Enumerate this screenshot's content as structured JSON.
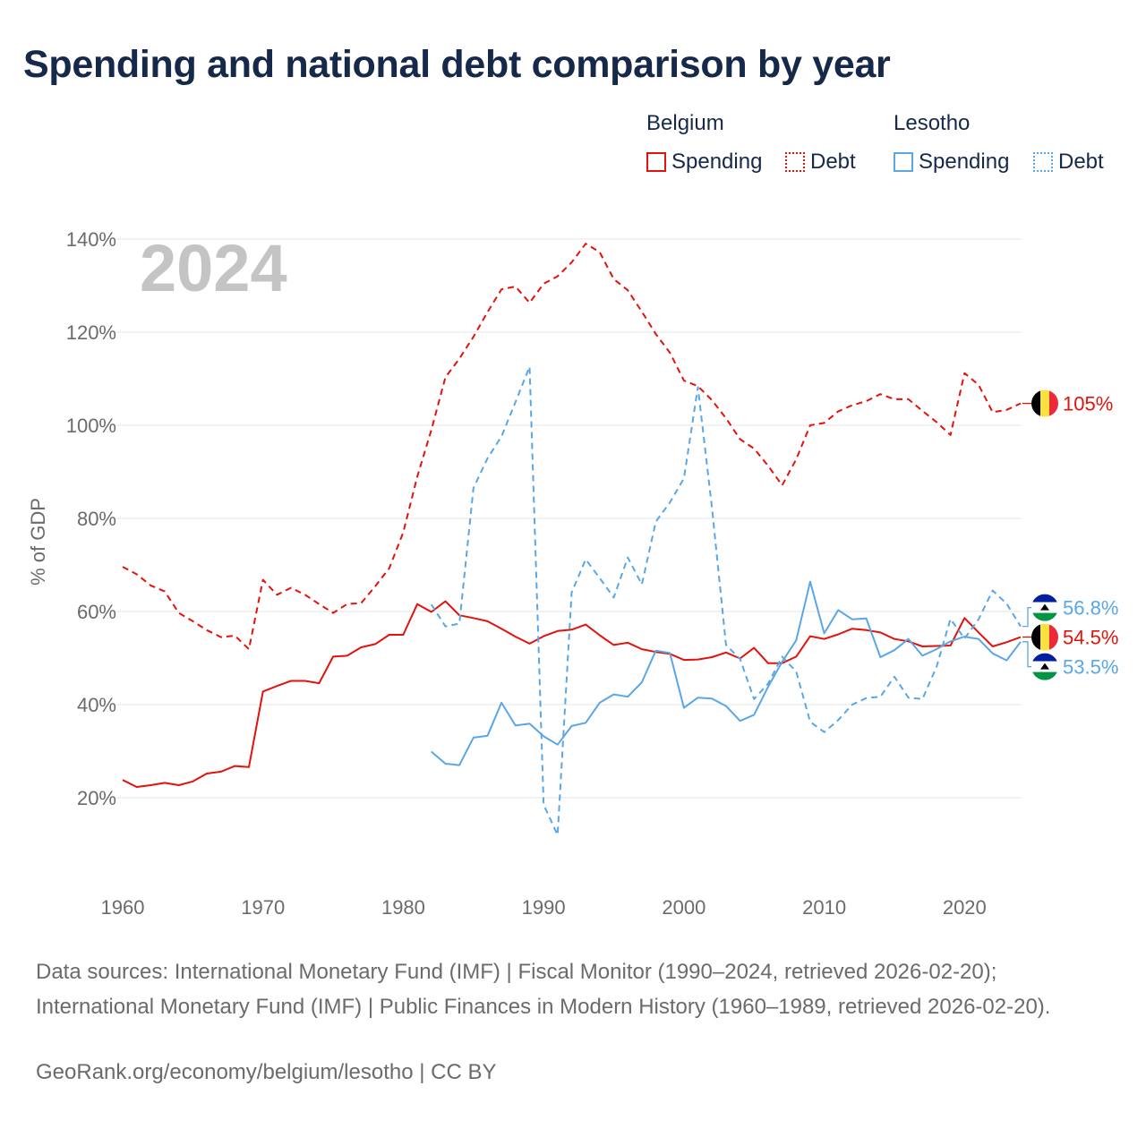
{
  "title": "Spending and national debt comparison by year",
  "legend": {
    "countries": [
      {
        "name": "Belgium",
        "color": "#e3120b",
        "items": [
          {
            "label": "Spending",
            "style": "solid"
          },
          {
            "label": "Debt",
            "style": "dotted"
          }
        ]
      },
      {
        "name": "Lesotho",
        "color": "#5aa6e6",
        "items": [
          {
            "label": "Spending",
            "style": "solid"
          },
          {
            "label": "Debt",
            "style": "dotted"
          }
        ]
      }
    ]
  },
  "source_text": "Data sources: International Monetary Fund (IMF) | Fiscal Monitor (1990–2024, retrieved 2026-02-20); International Monetary Fund (IMF) | Public Finances in Modern History (1960–1989, retrieved 2026-02-20).",
  "credit": "GeoRank.org/economy/belgium/lesotho | CC BY",
  "chart_data": {
    "type": "line",
    "title": "Spending and national debt comparison by year",
    "year_label": "2024",
    "ylabel": "% of GDP",
    "xlabel": "",
    "xlim": [
      1960,
      2024
    ],
    "ylim": [
      5,
      145
    ],
    "yticks": [
      20,
      40,
      60,
      80,
      100,
      120,
      140
    ],
    "ytick_labels": [
      "20%",
      "40%",
      "60%",
      "80%",
      "100%",
      "120%",
      "140%"
    ],
    "xticks": [
      1960,
      1970,
      1980,
      1990,
      2000,
      2010,
      2020
    ],
    "xtick_labels": [
      "1960",
      "1970",
      "1980",
      "1990",
      "2000",
      "2010",
      "2020"
    ],
    "grid": true,
    "series": [
      {
        "name": "Belgium Spending",
        "country": "Belgium",
        "color": "#e3120b",
        "dash": "solid",
        "x": [
          1960,
          1961,
          1962,
          1963,
          1964,
          1965,
          1966,
          1967,
          1968,
          1969,
          1970,
          1971,
          1972,
          1973,
          1974,
          1975,
          1976,
          1977,
          1978,
          1979,
          1980,
          1981,
          1982,
          1983,
          1984,
          1985,
          1986,
          1987,
          1988,
          1989,
          1990,
          1991,
          1992,
          1993,
          1994,
          1995,
          1996,
          1997,
          1998,
          1999,
          2000,
          2001,
          2002,
          2003,
          2004,
          2005,
          2006,
          2007,
          2008,
          2009,
          2010,
          2011,
          2012,
          2013,
          2014,
          2015,
          2016,
          2017,
          2018,
          2019,
          2020,
          2021,
          2022,
          2023,
          2024
        ],
        "y": [
          23.8,
          22.3,
          22.7,
          23.2,
          22.7,
          23.5,
          25.2,
          25.6,
          26.8,
          26.6,
          42.8,
          44,
          45.1,
          45.1,
          44.6,
          50.3,
          50.5,
          52.3,
          53,
          55,
          55,
          61.6,
          59.9,
          62.2,
          59.2,
          58.6,
          57.9,
          56.3,
          54.6,
          53.1,
          54.7,
          55.8,
          56.1,
          57.2,
          54.9,
          52.8,
          53.3,
          51.9,
          51.3,
          50.9,
          49.6,
          49.7,
          50.2,
          51.2,
          49.9,
          52.2,
          48.9,
          48.9,
          50.3,
          54.7,
          54.1,
          55.1,
          56.3,
          56,
          55.5,
          54.1,
          53.6,
          52.5,
          52.6,
          52.7,
          58.6,
          55.5,
          52.5,
          53.4,
          54.5
        ],
        "end_label": "54.5%"
      },
      {
        "name": "Belgium Debt",
        "country": "Belgium",
        "color": "#e3120b",
        "dash": "dashed",
        "x": [
          1960,
          1961,
          1962,
          1963,
          1964,
          1965,
          1966,
          1967,
          1968,
          1969,
          1970,
          1971,
          1972,
          1973,
          1974,
          1975,
          1976,
          1977,
          1978,
          1979,
          1980,
          1981,
          1982,
          1983,
          1984,
          1985,
          1986,
          1987,
          1988,
          1989,
          1990,
          1991,
          1992,
          1993,
          1994,
          1995,
          1996,
          1997,
          1998,
          1999,
          2000,
          2001,
          2002,
          2003,
          2004,
          2005,
          2006,
          2007,
          2008,
          2009,
          2010,
          2011,
          2012,
          2013,
          2014,
          2015,
          2016,
          2017,
          2018,
          2019,
          2020,
          2021,
          2022,
          2023,
          2024
        ],
        "y": [
          69.6,
          68,
          65.6,
          64.3,
          59.7,
          57.9,
          56,
          54.5,
          54.8,
          51.9,
          66.8,
          63.6,
          65.1,
          63.6,
          61.6,
          59.7,
          61.6,
          61.8,
          65.4,
          69.3,
          77,
          89,
          99,
          110.3,
          114.3,
          119,
          124.3,
          129.2,
          129.8,
          126.3,
          130.4,
          132,
          135,
          139,
          137.2,
          131.4,
          129,
          124.4,
          119.6,
          115.6,
          109.6,
          108.4,
          105.4,
          101.5,
          97,
          95,
          91.3,
          87.1,
          92.7,
          100,
          100.5,
          103,
          104.3,
          105.2,
          106.7,
          105.6,
          105.6,
          103.1,
          100.7,
          97.9,
          111.2,
          108.7,
          102.8,
          103.3,
          104.7
        ],
        "end_label": "105%"
      },
      {
        "name": "Lesotho Spending",
        "country": "Lesotho",
        "color": "#5aa6e6",
        "dash": "solid",
        "x": [
          1982,
          1983,
          1984,
          1985,
          1986,
          1987,
          1988,
          1989,
          1990,
          1991,
          1992,
          1993,
          1994,
          1995,
          1996,
          1997,
          1998,
          1999,
          2000,
          2001,
          2002,
          2003,
          2004,
          2005,
          2006,
          2007,
          2008,
          2009,
          2010,
          2011,
          2012,
          2013,
          2014,
          2015,
          2016,
          2017,
          2018,
          2019,
          2020,
          2021,
          2022,
          2023,
          2024
        ],
        "y": [
          29.9,
          27.3,
          27,
          32.9,
          33.3,
          40.4,
          35.5,
          35.9,
          33.2,
          31.4,
          35.4,
          36.1,
          40.4,
          42.2,
          41.7,
          44.8,
          51.6,
          51.1,
          39.3,
          41.5,
          41.3,
          39.7,
          36.5,
          37.8,
          43.8,
          49.2,
          53.8,
          66.4,
          55.3,
          60.3,
          58.3,
          58.5,
          50.2,
          51.7,
          54.1,
          50.5,
          51.9,
          53.6,
          54.6,
          54.1,
          51,
          49.5,
          53.5
        ],
        "end_label": "53.5%"
      },
      {
        "name": "Lesotho Debt",
        "country": "Lesotho",
        "color": "#5aa6e6",
        "dash": "dashed",
        "x": [
          1982,
          1983,
          1984,
          1985,
          1986,
          1987,
          1988,
          1989,
          1990,
          1991,
          1992,
          1993,
          1994,
          1995,
          1996,
          1997,
          1998,
          1999,
          2000,
          2001,
          2002,
          2003,
          2004,
          2005,
          2006,
          2007,
          2008,
          2009,
          2010,
          2011,
          2012,
          2013,
          2014,
          2015,
          2016,
          2017,
          2018,
          2019,
          2020,
          2021,
          2022,
          2023,
          2024
        ],
        "y": [
          61.5,
          56.8,
          57.4,
          86.5,
          92.9,
          97.6,
          105,
          112.6,
          18.5,
          12,
          64.1,
          71.2,
          67.2,
          63,
          71.6,
          65.8,
          79.3,
          83.4,
          88.6,
          108.2,
          82.3,
          52.8,
          49.8,
          41.2,
          44.5,
          50.3,
          47.1,
          36.3,
          34.1,
          36.7,
          40,
          41.4,
          41.7,
          46,
          41.5,
          41.2,
          48.1,
          58.4,
          54.2,
          58.3,
          64.5,
          61.7,
          56.8
        ],
        "end_label": "56.8%"
      }
    ],
    "end_markers": [
      {
        "country": "Belgium",
        "flag": "belgium-flag",
        "labels": [
          "105%",
          "54.5%"
        ]
      },
      {
        "country": "Lesotho",
        "flag": "lesotho-flag",
        "labels": [
          "56.8%",
          "53.5%"
        ]
      }
    ]
  }
}
